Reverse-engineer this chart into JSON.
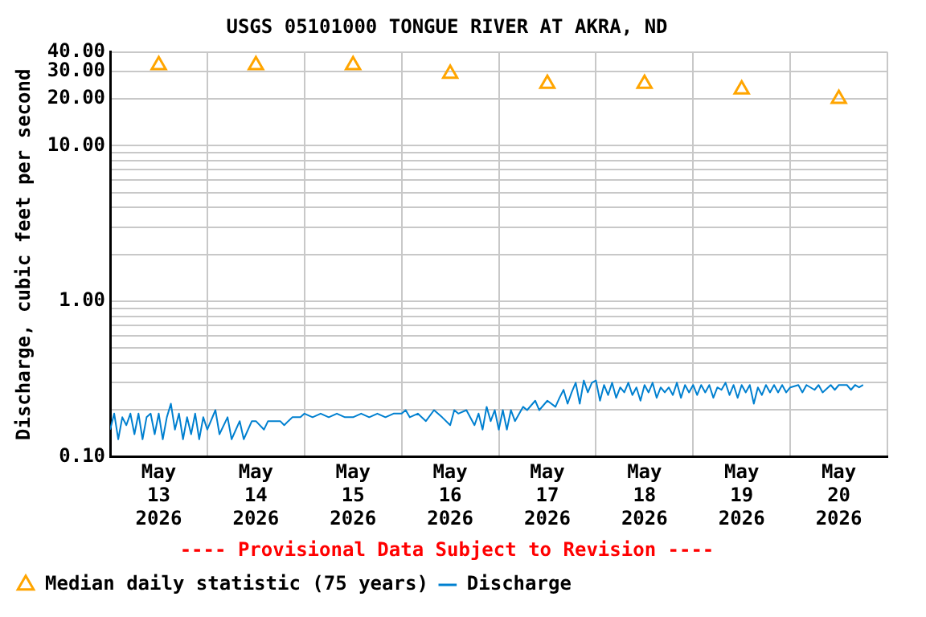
{
  "chart_data": {
    "type": "line",
    "title": "USGS 05101000 TONGUE RIVER AT AKRA, ND",
    "ylabel": "Discharge, cubic feet per second",
    "log": "y",
    "grid": true,
    "legend": "bottom left",
    "annotations": [
      "---- Provisional Data Subject to Revision ----"
    ],
    "xlim": [
      "2026-05-13T00:00",
      "2026-05-21T00:00"
    ],
    "xticks": [
      {
        "value": "2026-05-13T00:00",
        "label": null
      },
      {
        "value": "2026-05-13T12:00",
        "label": "May\n13\n2026"
      },
      {
        "value": "2026-05-14T00:00",
        "label": null
      },
      {
        "value": "2026-05-14T12:00",
        "label": "May\n14\n2026"
      },
      {
        "value": "2026-05-15T00:00",
        "label": null
      },
      {
        "value": "2026-05-15T12:00",
        "label": "May\n15\n2026"
      },
      {
        "value": "2026-05-16T00:00",
        "label": null
      },
      {
        "value": "2026-05-16T12:00",
        "label": "May\n16\n2026"
      },
      {
        "value": "2026-05-17T00:00",
        "label": null
      },
      {
        "value": "2026-05-17T12:00",
        "label": "May\n17\n2026"
      },
      {
        "value": "2026-05-18T00:00",
        "label": null
      },
      {
        "value": "2026-05-18T12:00",
        "label": "May\n18\n2026"
      },
      {
        "value": "2026-05-19T00:00",
        "label": null
      },
      {
        "value": "2026-05-19T12:00",
        "label": "May\n19\n2026"
      },
      {
        "value": "2026-05-20T00:00",
        "label": null
      },
      {
        "value": "2026-05-20T12:00",
        "label": "May\n20\n2026"
      },
      {
        "value": "2026-05-21T00:00",
        "label": null
      }
    ],
    "ylim": [
      0.1,
      40
    ],
    "yticks": [
      {
        "value": 0.1,
        "label": "0.10"
      },
      {
        "value": 0.2,
        "label": null
      },
      {
        "value": 0.3,
        "label": null
      },
      {
        "value": 0.4,
        "label": null
      },
      {
        "value": 0.5,
        "label": null
      },
      {
        "value": 0.6,
        "label": null
      },
      {
        "value": 0.7,
        "label": null
      },
      {
        "value": 0.8,
        "label": null
      },
      {
        "value": 0.9,
        "label": null
      },
      {
        "value": 1,
        "label": "1.00"
      },
      {
        "value": 2,
        "label": null
      },
      {
        "value": 3,
        "label": null
      },
      {
        "value": 4,
        "label": null
      },
      {
        "value": 5,
        "label": null
      },
      {
        "value": 6,
        "label": null
      },
      {
        "value": 7,
        "label": null
      },
      {
        "value": 8,
        "label": null
      },
      {
        "value": 9,
        "label": null
      },
      {
        "value": 10,
        "label": "10.00"
      },
      {
        "value": 20,
        "label": "20.00"
      },
      {
        "value": 30,
        "label": "30.00"
      },
      {
        "value": 40,
        "label": "40.00"
      }
    ],
    "series": [
      {
        "name": "Median daily statistic (75 years)",
        "type": "scatter",
        "marker": "triangle",
        "color": "#ffa500",
        "x": [
          "2026-05-13T12:00",
          "2026-05-14T12:00",
          "2026-05-15T12:00",
          "2026-05-16T12:00",
          "2026-05-17T12:00",
          "2026-05-18T12:00",
          "2026-05-19T12:00",
          "2026-05-20T12:00"
        ],
        "values": [
          33,
          33,
          33,
          29,
          25,
          25,
          23,
          20
        ]
      },
      {
        "name": "Discharge",
        "marker": "none",
        "color": "#0080d0",
        "x": [
          "2026-05-13T00:00",
          "2026-05-13T01:00",
          "2026-05-13T02:00",
          "2026-05-13T03:00",
          "2026-05-13T04:00",
          "2026-05-13T05:00",
          "2026-05-13T06:00",
          "2026-05-13T07:00",
          "2026-05-13T08:00",
          "2026-05-13T09:00",
          "2026-05-13T10:00",
          "2026-05-13T11:00",
          "2026-05-13T12:00",
          "2026-05-13T13:00",
          "2026-05-13T14:00",
          "2026-05-13T15:00",
          "2026-05-13T16:00",
          "2026-05-13T17:00",
          "2026-05-13T18:00",
          "2026-05-13T19:00",
          "2026-05-13T20:00",
          "2026-05-13T21:00",
          "2026-05-13T22:00",
          "2026-05-13T23:00",
          "2026-05-14T00:00",
          "2026-05-14T02:00",
          "2026-05-14T03:00",
          "2026-05-14T05:00",
          "2026-05-14T06:00",
          "2026-05-14T08:00",
          "2026-05-14T09:00",
          "2026-05-14T11:00",
          "2026-05-14T12:00",
          "2026-05-14T14:00",
          "2026-05-14T15:00",
          "2026-05-14T18:00",
          "2026-05-14T19:00",
          "2026-05-14T20:00",
          "2026-05-14T21:00",
          "2026-05-14T23:00",
          "2026-05-15T00:00",
          "2026-05-15T02:00",
          "2026-05-15T04:00",
          "2026-05-15T06:00",
          "2026-05-15T08:00",
          "2026-05-15T10:00",
          "2026-05-15T12:00",
          "2026-05-15T14:00",
          "2026-05-15T16:00",
          "2026-05-15T18:00",
          "2026-05-15T20:00",
          "2026-05-15T22:00",
          "2026-05-16T00:00",
          "2026-05-16T01:00",
          "2026-05-16T02:00",
          "2026-05-16T04:00",
          "2026-05-16T06:00",
          "2026-05-16T08:00",
          "2026-05-16T10:00",
          "2026-05-16T12:00",
          "2026-05-16T13:00",
          "2026-05-16T14:00",
          "2026-05-16T16:00",
          "2026-05-16T18:00",
          "2026-05-16T19:00",
          "2026-05-16T20:00",
          "2026-05-16T21:00",
          "2026-05-16T22:00",
          "2026-05-16T23:00",
          "2026-05-17T00:00",
          "2026-05-17T01:00",
          "2026-05-17T02:00",
          "2026-05-17T03:00",
          "2026-05-17T04:00",
          "2026-05-17T06:00",
          "2026-05-17T07:00",
          "2026-05-17T09:00",
          "2026-05-17T10:00",
          "2026-05-17T12:00",
          "2026-05-17T14:00",
          "2026-05-17T15:00",
          "2026-05-17T16:00",
          "2026-05-17T17:00",
          "2026-05-17T18:00",
          "2026-05-17T19:00",
          "2026-05-17T20:00",
          "2026-05-17T21:00",
          "2026-05-17T22:00",
          "2026-05-17T23:00",
          "2026-05-18T00:00",
          "2026-05-18T01:00",
          "2026-05-18T02:00",
          "2026-05-18T03:00",
          "2026-05-18T04:00",
          "2026-05-18T05:00",
          "2026-05-18T06:00",
          "2026-05-18T07:00",
          "2026-05-18T08:00",
          "2026-05-18T09:00",
          "2026-05-18T10:00",
          "2026-05-18T11:00",
          "2026-05-18T12:00",
          "2026-05-18T13:00",
          "2026-05-18T14:00",
          "2026-05-18T15:00",
          "2026-05-18T16:00",
          "2026-05-18T17:00",
          "2026-05-18T18:00",
          "2026-05-18T19:00",
          "2026-05-18T20:00",
          "2026-05-18T21:00",
          "2026-05-18T22:00",
          "2026-05-18T23:00",
          "2026-05-19T00:00",
          "2026-05-19T01:00",
          "2026-05-19T02:00",
          "2026-05-19T03:00",
          "2026-05-19T04:00",
          "2026-05-19T05:00",
          "2026-05-19T06:00",
          "2026-05-19T07:00",
          "2026-05-19T08:00",
          "2026-05-19T09:00",
          "2026-05-19T10:00",
          "2026-05-19T11:00",
          "2026-05-19T12:00",
          "2026-05-19T13:00",
          "2026-05-19T14:00",
          "2026-05-19T15:00",
          "2026-05-19T16:00",
          "2026-05-19T17:00",
          "2026-05-19T18:00",
          "2026-05-19T19:00",
          "2026-05-19T20:00",
          "2026-05-19T21:00",
          "2026-05-19T22:00",
          "2026-05-19T23:00",
          "2026-05-20T00:00",
          "2026-05-20T02:00",
          "2026-05-20T03:00",
          "2026-05-20T04:00",
          "2026-05-20T06:00",
          "2026-05-20T07:00",
          "2026-05-20T08:00",
          "2026-05-20T10:00",
          "2026-05-20T11:00",
          "2026-05-20T12:00",
          "2026-05-20T14:00",
          "2026-05-20T15:00",
          "2026-05-20T16:00",
          "2026-05-20T17:00",
          "2026-05-20T18:00"
        ],
        "values": [
          0.15,
          0.19,
          0.13,
          0.18,
          0.16,
          0.19,
          0.14,
          0.19,
          0.13,
          0.18,
          0.19,
          0.14,
          0.19,
          0.13,
          0.18,
          0.22,
          0.15,
          0.19,
          0.13,
          0.18,
          0.14,
          0.19,
          0.13,
          0.18,
          0.15,
          0.2,
          0.14,
          0.18,
          0.13,
          0.17,
          0.13,
          0.17,
          0.17,
          0.15,
          0.17,
          0.17,
          0.16,
          0.17,
          0.18,
          0.18,
          0.19,
          0.18,
          0.19,
          0.18,
          0.19,
          0.18,
          0.18,
          0.19,
          0.18,
          0.19,
          0.18,
          0.19,
          0.19,
          0.2,
          0.18,
          0.19,
          0.17,
          0.2,
          0.18,
          0.16,
          0.2,
          0.19,
          0.2,
          0.16,
          0.19,
          0.15,
          0.21,
          0.17,
          0.2,
          0.15,
          0.2,
          0.15,
          0.2,
          0.17,
          0.21,
          0.2,
          0.23,
          0.2,
          0.23,
          0.21,
          0.24,
          0.27,
          0.22,
          0.26,
          0.3,
          0.22,
          0.31,
          0.26,
          0.3,
          0.31,
          0.23,
          0.29,
          0.25,
          0.3,
          0.24,
          0.28,
          0.26,
          0.3,
          0.25,
          0.28,
          0.23,
          0.29,
          0.26,
          0.3,
          0.24,
          0.28,
          0.26,
          0.28,
          0.25,
          0.3,
          0.24,
          0.29,
          0.26,
          0.29,
          0.25,
          0.29,
          0.26,
          0.29,
          0.24,
          0.28,
          0.27,
          0.3,
          0.25,
          0.29,
          0.24,
          0.29,
          0.26,
          0.29,
          0.22,
          0.28,
          0.25,
          0.29,
          0.26,
          0.29,
          0.26,
          0.29,
          0.26,
          0.28,
          0.29,
          0.26,
          0.29,
          0.27,
          0.29,
          0.26,
          0.29,
          0.27,
          0.29,
          0.29,
          0.27,
          0.29,
          0.28,
          0.29
        ]
      }
    ]
  }
}
